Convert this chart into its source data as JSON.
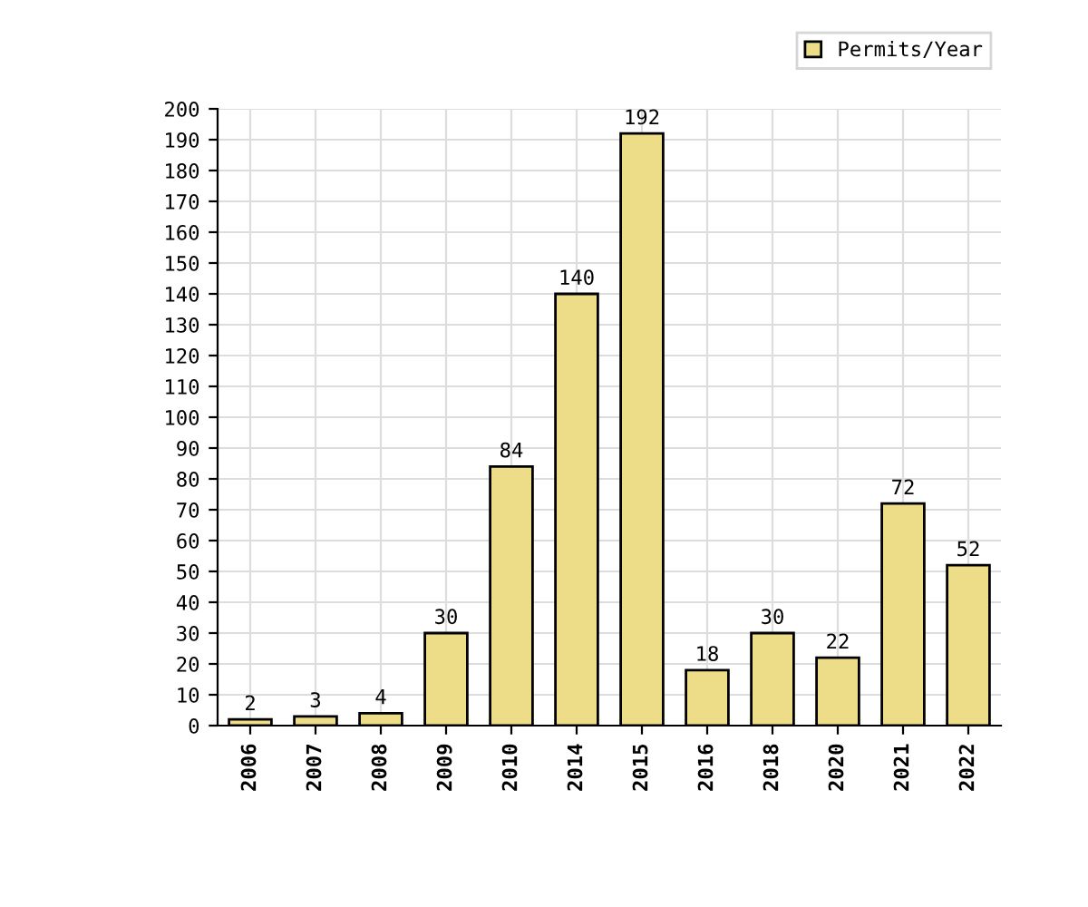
{
  "chart_data": {
    "type": "bar",
    "categories": [
      "2006",
      "2007",
      "2008",
      "2009",
      "2010",
      "2014",
      "2015",
      "2016",
      "2018",
      "2020",
      "2021",
      "2022"
    ],
    "series": [
      {
        "name": "Permits/Year",
        "color": "#eedd88",
        "values": [
          2,
          3,
          4,
          30,
          84,
          140,
          192,
          18,
          30,
          22,
          72,
          52
        ]
      }
    ],
    "ylim": [
      0,
      200
    ],
    "yticks": [
      0,
      10,
      20,
      30,
      40,
      50,
      60,
      70,
      80,
      90,
      100,
      110,
      120,
      130,
      140,
      150,
      160,
      170,
      180,
      190,
      200
    ],
    "grid": true,
    "legend": "top right",
    "data_labels": true
  }
}
